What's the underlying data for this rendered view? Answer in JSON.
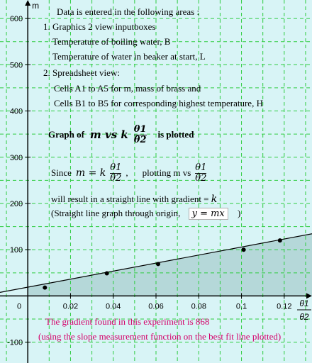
{
  "axes": {
    "x_axis_label_num": "θ1",
    "x_axis_label_den": "θ2",
    "y_axis_label": "m",
    "origin_label": "0",
    "x_ticks": [
      "0.02",
      "0.04",
      "0.06",
      "0.08",
      "0.1",
      "0.12"
    ],
    "y_ticks": [
      "600",
      "500",
      "400",
      "300",
      "200",
      "100",
      "-100"
    ]
  },
  "info": {
    "heading": "Data is entered in the following areas :",
    "item1_title": "1. Graphics 2 view inputboxes",
    "item1_line1": "Temperature of boiling water, B",
    "item1_line2": "Temperature of water in beaker at start, L",
    "item2_title": "2. Spreadsheet view:",
    "item2_line1": "Cells A1 to A5 for m, mass of brass and",
    "item2_line2": "Cells B1 to B5  for corresponding highest temperature, H"
  },
  "graph_of": {
    "prefix": "Graph of",
    "expr": "m vs k",
    "frac_num": "θ1",
    "frac_den": "θ2",
    "suffix": "is plotted"
  },
  "since": {
    "word": "Since",
    "lhs": "m = k",
    "frac_num": "θ1",
    "frac_den": "θ2",
    "comma": ",",
    "plotting": "plotting m vs",
    "frac2_num": "θ1",
    "frac2_den": "θ2"
  },
  "gradient_line": {
    "text": "will result in a straight line with gradient =",
    "k": "k"
  },
  "origin_line": {
    "text": "(Straight line graph through origin,",
    "formula": "y = mx",
    "close": ")"
  },
  "result": {
    "line1": "The gradient found in this experiment is 868",
    "line2": "(using the slope measurement function on the best fit line plotted)"
  },
  "colors": {
    "background": "#d8f4f6",
    "grid": "#2ecc40",
    "shade": "#a9cfcf",
    "result_text": "#d4006a"
  },
  "chart_data": {
    "type": "scatter",
    "points": [
      {
        "x": 0.008,
        "y": 18
      },
      {
        "x": 0.037,
        "y": 49
      },
      {
        "x": 0.061,
        "y": 69
      },
      {
        "x": 0.101,
        "y": 100
      },
      {
        "x": 0.118,
        "y": 120
      }
    ],
    "best_fit": {
      "intercept": 19,
      "slope": 868
    },
    "xlim": [
      -0.013,
      0.133
    ],
    "ylim": [
      -145,
      640
    ]
  }
}
